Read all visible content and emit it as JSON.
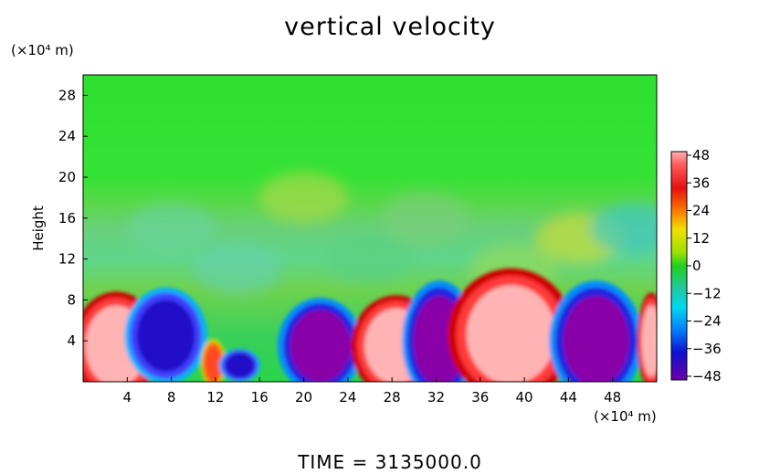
{
  "chart_data": {
    "type": "heatmap",
    "title": "vertical velocity",
    "xlabel": "",
    "ylabel": "Height",
    "x_unit_label": "(×10⁴ m)",
    "y_unit_label": "(×10⁴ m)",
    "xlim": [
      0,
      52
    ],
    "ylim": [
      0,
      30
    ],
    "xticks": [
      4,
      8,
      12,
      16,
      20,
      24,
      28,
      32,
      36,
      40,
      44,
      48
    ],
    "yticks": [
      4,
      8,
      12,
      16,
      20,
      24,
      28
    ],
    "colorbar": {
      "ticks": [
        48,
        36,
        24,
        12,
        0,
        -12,
        -24,
        -36,
        -48
      ],
      "range": [
        -48,
        48
      ]
    },
    "cells": [
      {
        "x": 3,
        "y": 3.5,
        "rx": 3.2,
        "ry": 4.5,
        "value": 48
      },
      {
        "x": 7.5,
        "y": 4.5,
        "rx": 3.0,
        "ry": 4.0,
        "value": -36
      },
      {
        "x": 11.8,
        "y": 1.8,
        "rx": 0.9,
        "ry": 2.0,
        "value": 36
      },
      {
        "x": 14.2,
        "y": 1.6,
        "rx": 1.5,
        "ry": 1.4,
        "value": -36
      },
      {
        "x": 21.5,
        "y": 3.5,
        "rx": 3.1,
        "ry": 4.0,
        "value": -48
      },
      {
        "x": 28.4,
        "y": 3.5,
        "rx": 3.3,
        "ry": 4.2,
        "value": 48
      },
      {
        "x": 32.3,
        "y": 4.0,
        "rx": 2.7,
        "ry": 5.0,
        "value": -48
      },
      {
        "x": 38.8,
        "y": 4.6,
        "rx": 4.6,
        "ry": 5.5,
        "value": 48
      },
      {
        "x": 46.5,
        "y": 4.0,
        "rx": 3.4,
        "ry": 5.0,
        "value": -48
      },
      {
        "x": 51.5,
        "y": 4.0,
        "rx": 1.0,
        "ry": 4.0,
        "value": 48
      }
    ]
  },
  "time_label": "TIME  =  3135000.0"
}
